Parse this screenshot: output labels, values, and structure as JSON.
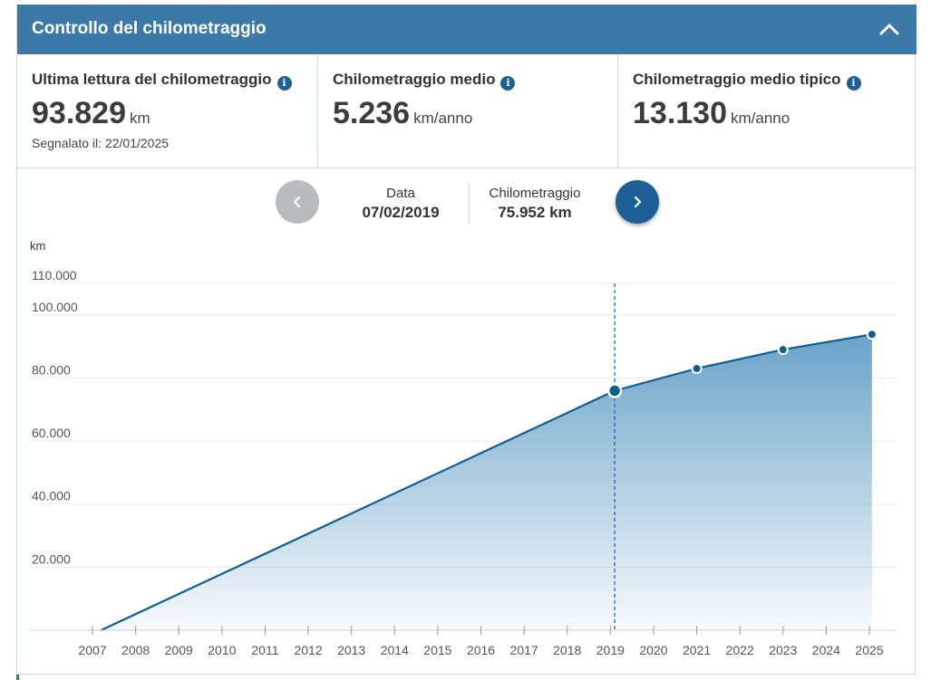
{
  "header": {
    "title": "Controllo del chilometraggio"
  },
  "stats": [
    {
      "label": "Ultima lettura del chilometraggio",
      "value": "93.829",
      "unit": "km",
      "sub": "Segnalato il: 22/01/2025"
    },
    {
      "label": "Chilometraggio medio",
      "value": "5.236",
      "unit": "km/anno"
    },
    {
      "label": "Chilometraggio medio tipico",
      "value": "13.130",
      "unit": "km/anno"
    }
  ],
  "selection": {
    "date_label": "Data",
    "date_value": "07/02/2019",
    "km_label": "Chilometraggio",
    "km_value": "75.952 km"
  },
  "colors": {
    "header": "#3b79a8",
    "accent": "#1d5f96",
    "line": "#0f5f8f",
    "area_top": "#6aa3c8"
  },
  "chart_data": {
    "type": "area",
    "y_unit_label": "km",
    "y_ticks": [
      20000,
      40000,
      60000,
      80000,
      100000,
      110000
    ],
    "y_tick_labels": [
      "20.000",
      "40.000",
      "60.000",
      "80.000",
      "100.000",
      "110.000"
    ],
    "ylim": [
      0,
      110000
    ],
    "x_ticks": [
      2007,
      2008,
      2009,
      2010,
      2011,
      2012,
      2013,
      2014,
      2015,
      2016,
      2017,
      2018,
      2019,
      2020,
      2021,
      2022,
      2023,
      2024,
      2025
    ],
    "xlim": [
      2007,
      2025
    ],
    "grid": true,
    "legend": "none",
    "points": [
      {
        "x": 2007.2,
        "y": 0,
        "marker": false
      },
      {
        "x": 2019.1,
        "y": 75952,
        "marker": true,
        "selected": true
      },
      {
        "x": 2021.0,
        "y": 83000,
        "marker": true
      },
      {
        "x": 2023.0,
        "y": 89000,
        "marker": true
      },
      {
        "x": 2025.06,
        "y": 93829,
        "marker": true
      }
    ],
    "selected_x": 2019.1
  }
}
